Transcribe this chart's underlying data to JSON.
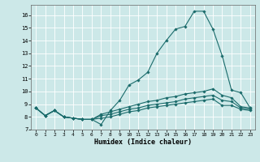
{
  "xlabel": "Humidex (Indice chaleur)",
  "xlim": [
    -0.5,
    23.5
  ],
  "ylim": [
    7,
    16.8
  ],
  "yticks": [
    7,
    8,
    9,
    10,
    11,
    12,
    13,
    14,
    15,
    16
  ],
  "xticks": [
    0,
    1,
    2,
    3,
    4,
    5,
    6,
    7,
    8,
    9,
    10,
    11,
    12,
    13,
    14,
    15,
    16,
    17,
    18,
    19,
    20,
    21,
    22,
    23
  ],
  "bg_color": "#cce8e8",
  "line_color": "#1a6b6b",
  "series": [
    [
      8.7,
      8.1,
      8.5,
      8.0,
      7.9,
      7.8,
      7.8,
      7.4,
      8.5,
      9.3,
      10.5,
      10.9,
      11.5,
      13.0,
      14.0,
      14.9,
      15.1,
      16.3,
      16.3,
      14.9,
      12.8,
      10.1,
      9.9,
      8.7
    ],
    [
      8.7,
      8.1,
      8.5,
      8.0,
      7.9,
      7.8,
      7.8,
      8.2,
      8.4,
      8.6,
      8.8,
      9.0,
      9.2,
      9.3,
      9.5,
      9.6,
      9.8,
      9.9,
      10.0,
      10.2,
      9.7,
      9.5,
      8.8,
      8.7
    ],
    [
      8.7,
      8.1,
      8.5,
      8.0,
      7.9,
      7.8,
      7.8,
      8.1,
      8.2,
      8.4,
      8.6,
      8.7,
      8.9,
      9.0,
      9.1,
      9.2,
      9.4,
      9.5,
      9.6,
      9.7,
      9.3,
      9.2,
      8.7,
      8.6
    ],
    [
      8.7,
      8.1,
      8.5,
      8.0,
      7.9,
      7.8,
      7.8,
      7.9,
      8.0,
      8.2,
      8.4,
      8.5,
      8.7,
      8.8,
      8.9,
      9.0,
      9.1,
      9.2,
      9.3,
      9.4,
      8.9,
      8.9,
      8.6,
      8.5
    ]
  ]
}
